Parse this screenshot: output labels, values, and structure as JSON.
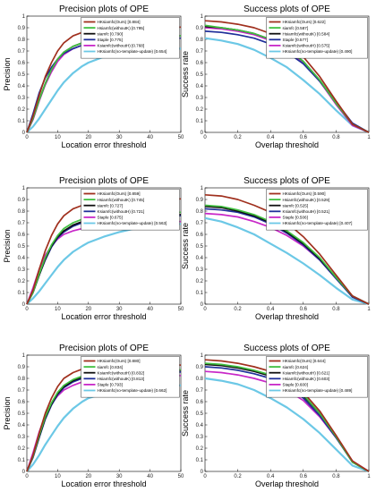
{
  "chart_data": [
    {
      "type": "line",
      "title": "Precision plots of OPE",
      "xlabel": "Location error threshold",
      "ylabel": "Precision",
      "xlim": [
        0,
        50
      ],
      "ylim": [
        0,
        1
      ],
      "xticks": [
        "0",
        "10",
        "20",
        "30",
        "40",
        "50"
      ],
      "yticks": [
        "0",
        "0.1",
        "0.2",
        "0.3",
        "0.4",
        "0.5",
        "0.6",
        "0.7",
        "0.8",
        "0.9",
        "1"
      ],
      "legend_position": "top-right",
      "x": [
        0,
        2,
        4,
        6,
        8,
        10,
        12,
        15,
        18,
        20,
        25,
        30,
        35,
        40,
        45,
        50
      ],
      "series": [
        {
          "name": "HKsiamfc(Ours) [0.884]",
          "color": "#a0301e",
          "values": [
            0,
            0.14,
            0.32,
            0.48,
            0.6,
            0.7,
            0.77,
            0.83,
            0.86,
            0.87,
            0.88,
            0.89,
            0.895,
            0.9,
            0.9,
            0.905
          ]
        },
        {
          "name": "Hsiamfc(withoutK) [0.795]",
          "color": "#40c040",
          "values": [
            0,
            0.12,
            0.28,
            0.42,
            0.54,
            0.63,
            0.69,
            0.74,
            0.77,
            0.78,
            0.8,
            0.81,
            0.82,
            0.825,
            0.83,
            0.83
          ]
        },
        {
          "name": "siamfc [0.790]",
          "color": "#101010",
          "values": [
            0,
            0.12,
            0.28,
            0.42,
            0.54,
            0.63,
            0.69,
            0.74,
            0.77,
            0.78,
            0.8,
            0.81,
            0.815,
            0.82,
            0.825,
            0.83
          ]
        },
        {
          "name": "Staple [0.775]",
          "color": "#1f2f9a",
          "values": [
            0,
            0.16,
            0.34,
            0.47,
            0.56,
            0.63,
            0.68,
            0.72,
            0.75,
            0.76,
            0.78,
            0.79,
            0.8,
            0.805,
            0.81,
            0.81
          ]
        },
        {
          "name": "Ksiamfc(withoutH) [0.768]",
          "color": "#c828c8",
          "values": [
            0,
            0.11,
            0.27,
            0.41,
            0.52,
            0.61,
            0.67,
            0.72,
            0.75,
            0.76,
            0.78,
            0.79,
            0.8,
            0.805,
            0.81,
            0.81
          ]
        },
        {
          "name": "HKsiamfc(no-template-update) [0.654]",
          "color": "#6cc8e6",
          "values": [
            0,
            0.05,
            0.12,
            0.2,
            0.28,
            0.36,
            0.43,
            0.51,
            0.57,
            0.6,
            0.65,
            0.68,
            0.7,
            0.71,
            0.72,
            0.72
          ]
        }
      ]
    },
    {
      "type": "line",
      "title": "Success plots of OPE",
      "xlabel": "Overlap threshold",
      "ylabel": "Success rate",
      "xlim": [
        0,
        1
      ],
      "ylim": [
        0,
        1
      ],
      "xticks": [
        "0",
        "0.2",
        "0.4",
        "0.6",
        "0.8",
        "1"
      ],
      "yticks": [
        "0",
        "0.1",
        "0.2",
        "0.3",
        "0.4",
        "0.5",
        "0.6",
        "0.7",
        "0.8",
        "0.9",
        "1"
      ],
      "legend_position": "top-right",
      "x": [
        0,
        0.1,
        0.2,
        0.3,
        0.4,
        0.5,
        0.6,
        0.7,
        0.8,
        0.9,
        1
      ],
      "series": [
        {
          "name": "HKsiamfc(Ours) [0.622]",
          "color": "#a0301e",
          "values": [
            0.96,
            0.95,
            0.93,
            0.9,
            0.85,
            0.77,
            0.65,
            0.48,
            0.27,
            0.07,
            0
          ]
        },
        {
          "name": "siamfc [0.587]",
          "color": "#40c040",
          "values": [
            0.92,
            0.9,
            0.88,
            0.85,
            0.8,
            0.72,
            0.61,
            0.45,
            0.25,
            0.07,
            0
          ]
        },
        {
          "name": "Hsiamfc(withoutK) [0.584]",
          "color": "#101010",
          "values": [
            0.91,
            0.9,
            0.88,
            0.85,
            0.8,
            0.72,
            0.61,
            0.45,
            0.25,
            0.07,
            0
          ]
        },
        {
          "name": "Staple [0.577]",
          "color": "#1f2f9a",
          "values": [
            0.87,
            0.86,
            0.84,
            0.81,
            0.76,
            0.69,
            0.59,
            0.44,
            0.26,
            0.08,
            0
          ]
        },
        {
          "name": "Ksiamfc(withoutH) [0.575]",
          "color": "#c828c8",
          "values": [
            0.9,
            0.89,
            0.87,
            0.84,
            0.79,
            0.71,
            0.6,
            0.44,
            0.24,
            0.06,
            0
          ]
        },
        {
          "name": "HKsiamfc(no-template-update) [0.490]",
          "color": "#6cc8e6",
          "values": [
            0.81,
            0.79,
            0.76,
            0.71,
            0.64,
            0.56,
            0.45,
            0.33,
            0.19,
            0.06,
            0
          ]
        }
      ]
    },
    {
      "type": "line",
      "title": "Precision plots of OPE",
      "xlabel": "Location error threshold",
      "ylabel": "Precision",
      "xlim": [
        0,
        50
      ],
      "ylim": [
        0,
        1
      ],
      "xticks": [
        "0",
        "10",
        "20",
        "30",
        "40",
        "50"
      ],
      "yticks": [
        "0",
        "0.1",
        "0.2",
        "0.3",
        "0.4",
        "0.5",
        "0.6",
        "0.7",
        "0.8",
        "0.9",
        "1"
      ],
      "legend_position": "top-right",
      "x": [
        0,
        2,
        4,
        6,
        8,
        10,
        12,
        15,
        18,
        20,
        25,
        30,
        35,
        40,
        45,
        50
      ],
      "series": [
        {
          "name": "HKsiamfc(Ours) [0.859]",
          "color": "#a0301e",
          "values": [
            0,
            0.12,
            0.3,
            0.46,
            0.59,
            0.69,
            0.76,
            0.82,
            0.85,
            0.86,
            0.88,
            0.89,
            0.895,
            0.9,
            0.9,
            0.905
          ]
        },
        {
          "name": "Hsiamfc(withoutK) [0.745]",
          "color": "#40c040",
          "values": [
            0,
            0.1,
            0.26,
            0.4,
            0.51,
            0.59,
            0.65,
            0.7,
            0.73,
            0.74,
            0.76,
            0.77,
            0.78,
            0.785,
            0.79,
            0.79
          ]
        },
        {
          "name": "siamfc [0.727]",
          "color": "#101010",
          "values": [
            0,
            0.1,
            0.25,
            0.39,
            0.5,
            0.58,
            0.63,
            0.68,
            0.71,
            0.72,
            0.74,
            0.75,
            0.76,
            0.765,
            0.77,
            0.77
          ]
        },
        {
          "name": "Ksiamfc(withoutH) [0.721]",
          "color": "#1f2f9a",
          "values": [
            0,
            0.1,
            0.25,
            0.38,
            0.49,
            0.57,
            0.62,
            0.67,
            0.7,
            0.71,
            0.73,
            0.74,
            0.75,
            0.755,
            0.76,
            0.76
          ]
        },
        {
          "name": "Staple [0.675]",
          "color": "#c828c8",
          "values": [
            0,
            0.14,
            0.3,
            0.42,
            0.5,
            0.56,
            0.6,
            0.63,
            0.65,
            0.66,
            0.68,
            0.69,
            0.7,
            0.705,
            0.71,
            0.71
          ]
        },
        {
          "name": "HKsiamfc(no-template-update) [0.563]",
          "color": "#6cc8e6",
          "values": [
            0,
            0.05,
            0.11,
            0.18,
            0.25,
            0.32,
            0.38,
            0.45,
            0.5,
            0.53,
            0.58,
            0.62,
            0.65,
            0.67,
            0.68,
            0.69
          ]
        }
      ]
    },
    {
      "type": "line",
      "title": "Success plots of OPE",
      "xlabel": "Overlap threshold",
      "ylabel": "Success rate",
      "xlim": [
        0,
        1
      ],
      "ylim": [
        0,
        1
      ],
      "xticks": [
        "0",
        "0.2",
        "0.4",
        "0.6",
        "0.8",
        "1"
      ],
      "yticks": [
        "0",
        "0.1",
        "0.2",
        "0.3",
        "0.4",
        "0.5",
        "0.6",
        "0.7",
        "0.8",
        "0.9",
        "1"
      ],
      "legend_position": "top-right",
      "x": [
        0,
        0.1,
        0.2,
        0.3,
        0.4,
        0.5,
        0.6,
        0.7,
        0.8,
        0.9,
        1
      ],
      "series": [
        {
          "name": "HKsiamfc(Ours) [0.590]",
          "color": "#a0301e",
          "values": [
            0.94,
            0.93,
            0.9,
            0.85,
            0.79,
            0.7,
            0.58,
            0.43,
            0.25,
            0.07,
            0
          ]
        },
        {
          "name": "Hsiamfc(withoutK) [0.529]",
          "color": "#40c040",
          "values": [
            0.85,
            0.84,
            0.81,
            0.77,
            0.71,
            0.63,
            0.53,
            0.4,
            0.23,
            0.07,
            0
          ]
        },
        {
          "name": "siamfc [0.525]",
          "color": "#101010",
          "values": [
            0.84,
            0.83,
            0.8,
            0.76,
            0.7,
            0.62,
            0.52,
            0.39,
            0.23,
            0.07,
            0
          ]
        },
        {
          "name": "Ksiamfc(withoutH) [0.521]",
          "color": "#1f2f9a",
          "values": [
            0.82,
            0.81,
            0.79,
            0.75,
            0.69,
            0.61,
            0.51,
            0.38,
            0.22,
            0.06,
            0
          ]
        },
        {
          "name": "Staple [0.506]",
          "color": "#c828c8",
          "values": [
            0.78,
            0.77,
            0.75,
            0.71,
            0.66,
            0.59,
            0.5,
            0.38,
            0.22,
            0.07,
            0
          ]
        },
        {
          "name": "HKsiamfc(no-template-update) [0.407]",
          "color": "#6cc8e6",
          "values": [
            0.74,
            0.71,
            0.66,
            0.6,
            0.52,
            0.44,
            0.35,
            0.25,
            0.14,
            0.04,
            0
          ]
        }
      ]
    },
    {
      "type": "line",
      "title": "Precision plots of OPE",
      "xlabel": "Location error threshold",
      "ylabel": "Precision",
      "xlim": [
        0,
        50
      ],
      "ylim": [
        0,
        1
      ],
      "xticks": [
        "0",
        "10",
        "20",
        "30",
        "40",
        "50"
      ],
      "yticks": [
        "0",
        "0.1",
        "0.2",
        "0.3",
        "0.4",
        "0.5",
        "0.6",
        "0.7",
        "0.8",
        "0.9",
        "1"
      ],
      "legend_position": "top-right",
      "x": [
        0,
        2,
        4,
        6,
        8,
        10,
        12,
        15,
        18,
        20,
        25,
        30,
        35,
        40,
        45,
        50
      ],
      "series": [
        {
          "name": "HKsiamfc(Ours) [0.880]",
          "color": "#a0301e",
          "values": [
            0,
            0.14,
            0.33,
            0.5,
            0.63,
            0.73,
            0.8,
            0.85,
            0.88,
            0.89,
            0.9,
            0.905,
            0.91,
            0.91,
            0.915,
            0.915
          ]
        },
        {
          "name": "siamfc [0.834]",
          "color": "#40c040",
          "values": [
            0,
            0.13,
            0.31,
            0.47,
            0.59,
            0.68,
            0.74,
            0.79,
            0.82,
            0.83,
            0.85,
            0.86,
            0.865,
            0.87,
            0.87,
            0.875
          ]
        },
        {
          "name": "Ksiamfc(withoutH) [0.832]",
          "color": "#101010",
          "values": [
            0,
            0.13,
            0.3,
            0.46,
            0.58,
            0.67,
            0.73,
            0.78,
            0.81,
            0.82,
            0.84,
            0.85,
            0.86,
            0.865,
            0.87,
            0.87
          ]
        },
        {
          "name": "Hsiamfc(withoutK) [0.813]",
          "color": "#1f2f9a",
          "values": [
            0,
            0.12,
            0.29,
            0.45,
            0.57,
            0.66,
            0.72,
            0.77,
            0.8,
            0.81,
            0.83,
            0.84,
            0.845,
            0.85,
            0.85,
            0.855
          ]
        },
        {
          "name": "Staple [0.793]",
          "color": "#c828c8",
          "values": [
            0,
            0.16,
            0.34,
            0.48,
            0.58,
            0.65,
            0.7,
            0.74,
            0.77,
            0.78,
            0.8,
            0.81,
            0.815,
            0.82,
            0.82,
            0.825
          ]
        },
        {
          "name": "HKsiamfc(no-template-update) [0.662]",
          "color": "#6cc8e6",
          "values": [
            0,
            0.06,
            0.14,
            0.23,
            0.31,
            0.39,
            0.46,
            0.54,
            0.6,
            0.63,
            0.67,
            0.7,
            0.72,
            0.73,
            0.74,
            0.74
          ]
        }
      ]
    },
    {
      "type": "line",
      "title": "Success plots of OPE",
      "xlabel": "Overlap threshold",
      "ylabel": "Success rate",
      "xlim": [
        0,
        1
      ],
      "ylim": [
        0,
        1
      ],
      "xticks": [
        "0",
        "0.2",
        "0.4",
        "0.6",
        "0.8",
        "1"
      ],
      "yticks": [
        "0",
        "0.1",
        "0.2",
        "0.3",
        "0.4",
        "0.5",
        "0.6",
        "0.7",
        "0.8",
        "0.9",
        "1"
      ],
      "legend_position": "top-right",
      "x": [
        0,
        0.1,
        0.2,
        0.3,
        0.4,
        0.5,
        0.6,
        0.7,
        0.8,
        0.9,
        1
      ],
      "series": [
        {
          "name": "HKsiamfc(Ours) [0.644]",
          "color": "#a0301e",
          "values": [
            0.96,
            0.95,
            0.93,
            0.9,
            0.86,
            0.79,
            0.68,
            0.52,
            0.31,
            0.09,
            0
          ]
        },
        {
          "name": "siamfc [0.624]",
          "color": "#40c040",
          "values": [
            0.93,
            0.92,
            0.9,
            0.87,
            0.83,
            0.76,
            0.66,
            0.5,
            0.3,
            0.08,
            0
          ]
        },
        {
          "name": "Ksiamfc(withoutH) [0.621]",
          "color": "#101010",
          "values": [
            0.92,
            0.91,
            0.89,
            0.86,
            0.82,
            0.75,
            0.65,
            0.5,
            0.3,
            0.08,
            0
          ]
        },
        {
          "name": "Hsiamfc(withoutK) [0.603]",
          "color": "#1f2f9a",
          "values": [
            0.9,
            0.89,
            0.87,
            0.84,
            0.8,
            0.73,
            0.63,
            0.48,
            0.29,
            0.08,
            0
          ]
        },
        {
          "name": "Staple [0.600]",
          "color": "#c828c8",
          "values": [
            0.86,
            0.85,
            0.83,
            0.8,
            0.76,
            0.7,
            0.61,
            0.47,
            0.29,
            0.09,
            0
          ]
        },
        {
          "name": "HKsiamfc(no-template-update) [0.489]",
          "color": "#6cc8e6",
          "values": [
            0.8,
            0.78,
            0.75,
            0.7,
            0.63,
            0.55,
            0.45,
            0.33,
            0.19,
            0.05,
            0
          ]
        }
      ]
    }
  ]
}
